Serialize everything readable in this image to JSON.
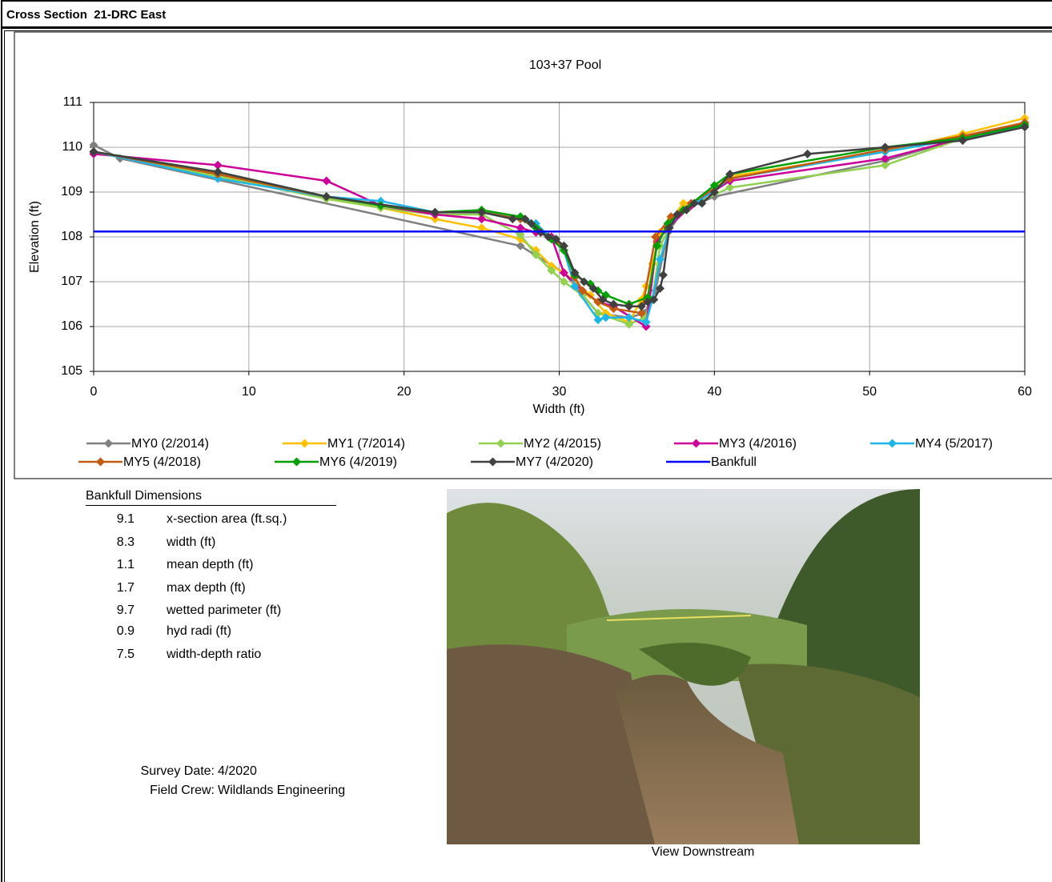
{
  "header": {
    "title": "Cross Section  21-DRC East"
  },
  "chart_data": {
    "type": "line",
    "title": "103+37 Pool",
    "x_label": "Width (ft)",
    "y_label": "Elevation (ft)",
    "xlim": [
      0,
      60
    ],
    "xticks": [
      0,
      10,
      20,
      30,
      40,
      50,
      60
    ],
    "ylim": [
      105,
      111
    ],
    "yticks": [
      105,
      106,
      107,
      108,
      109,
      110,
      111
    ],
    "grid": true,
    "legend": "bottom",
    "series": [
      {
        "name": "MY0 (2/2014)",
        "color": "#808080",
        "marker": "diamond",
        "x": [
          0,
          1.7,
          27.5,
          30.3,
          32.5,
          34.5,
          35.5,
          36.2,
          37,
          38,
          40,
          51,
          56,
          60
        ],
        "values": [
          110.05,
          109.75,
          107.8,
          107.2,
          106.3,
          106.2,
          106.3,
          106.8,
          108.1,
          108.6,
          108.9,
          109.7,
          110.2,
          110.5
        ]
      },
      {
        "name": "MY1 (7/2014)",
        "color": "#ffc000",
        "marker": "diamond",
        "x": [
          0,
          8,
          15,
          18.5,
          22,
          25,
          27.5,
          28.5,
          29.5,
          30.3,
          31,
          32,
          33,
          34.5,
          35.3,
          35.6,
          36,
          36.5,
          37.2,
          38,
          39,
          41,
          51,
          56,
          60
        ],
        "values": [
          109.9,
          109.4,
          108.85,
          108.65,
          108.4,
          108.2,
          107.95,
          107.7,
          107.35,
          107.2,
          107,
          106.7,
          106.3,
          106.1,
          106.6,
          106.9,
          107.4,
          108.1,
          108.4,
          108.75,
          108.8,
          109.35,
          109.9,
          110.3,
          110.65
        ]
      },
      {
        "name": "MY2 (4/2015)",
        "color": "#92d050",
        "marker": "diamond",
        "x": [
          0,
          8,
          15,
          18.5,
          22,
          25,
          27.5,
          28.5,
          29.5,
          30.3,
          31.5,
          32.5,
          34.5,
          35.5,
          36,
          36.5,
          37.5,
          38.5,
          41,
          51,
          56,
          60
        ],
        "values": [
          109.9,
          109.35,
          108.85,
          108.65,
          108.5,
          108.5,
          108.05,
          107.6,
          107.25,
          107,
          106.7,
          106.3,
          106.05,
          106.2,
          106.6,
          107.8,
          108.45,
          108.7,
          109.1,
          109.6,
          110.2,
          110.5
        ]
      },
      {
        "name": "MY3 (4/2016)",
        "color": "#cc0099",
        "marker": "diamond",
        "x": [
          0,
          8,
          15,
          18.5,
          22,
          25,
          27.5,
          28.5,
          29.5,
          30.3,
          31.5,
          32.5,
          33.5,
          35.6,
          36.3,
          37,
          38.5,
          41,
          51,
          56,
          60
        ],
        "values": [
          109.85,
          109.6,
          109.25,
          108.7,
          108.5,
          108.4,
          108.2,
          108.1,
          108,
          107.2,
          106.8,
          106.55,
          106.45,
          106,
          107.9,
          108.2,
          108.7,
          109.25,
          109.75,
          110.2,
          110.55
        ]
      },
      {
        "name": "MY4 (5/2017)",
        "color": "#1fb5e8",
        "marker": "diamond",
        "x": [
          0,
          8,
          15,
          18.5,
          22,
          25,
          27.5,
          28.5,
          30.3,
          31,
          32.5,
          33,
          34.5,
          35.6,
          36,
          36.5,
          37.3,
          38,
          39,
          41,
          51,
          56,
          60
        ],
        "values": [
          109.9,
          109.3,
          108.9,
          108.8,
          108.55,
          108.55,
          108.45,
          108.3,
          107.7,
          106.9,
          106.15,
          106.2,
          106.2,
          106.1,
          106.6,
          107.5,
          108.4,
          108.6,
          108.8,
          109.3,
          109.9,
          110.2,
          110.45
        ]
      },
      {
        "name": "MY5 (4/2018)",
        "color": "#c55a11",
        "marker": "diamond",
        "x": [
          0,
          8,
          15,
          18.5,
          22,
          25,
          27.5,
          28.5,
          29.5,
          30.3,
          31,
          31.5,
          32.5,
          33.5,
          35.3,
          36.2,
          37.2,
          38.5,
          41,
          51,
          56,
          60
        ],
        "values": [
          109.9,
          109.4,
          108.9,
          108.7,
          108.55,
          108.55,
          108.4,
          108.2,
          107.95,
          107.8,
          107.1,
          106.8,
          106.55,
          106.4,
          106.3,
          108,
          108.45,
          108.75,
          109.3,
          109.95,
          110.25,
          110.55
        ]
      },
      {
        "name": "MY6 (4/2019)",
        "color": "#00a000",
        "marker": "diamond",
        "x": [
          0,
          8,
          15,
          18.5,
          22,
          25,
          27.5,
          28.5,
          29.5,
          30.3,
          31,
          32,
          32.5,
          33,
          34.5,
          35.7,
          36.3,
          37,
          38,
          40,
          41,
          51,
          56,
          60
        ],
        "values": [
          109.9,
          109.45,
          108.9,
          108.7,
          108.55,
          108.6,
          108.45,
          108.2,
          107.95,
          107.7,
          107.15,
          106.95,
          106.8,
          106.7,
          106.5,
          106.65,
          107.8,
          108.3,
          108.6,
          109.15,
          109.4,
          110,
          110.2,
          110.5
        ]
      },
      {
        "name": "MY7 (4/2020)",
        "color": "#404040",
        "marker": "diamond",
        "x": [
          0,
          8,
          15,
          22,
          25,
          27,
          27.8,
          28.2,
          28.8,
          29.3,
          29.8,
          30.3,
          31,
          31.6,
          32.2,
          32.8,
          33.5,
          34.5,
          35.3,
          35.7,
          36.1,
          36.5,
          36.7,
          37.1,
          37.6,
          38.2,
          38.7,
          39.2,
          40,
          41,
          46,
          51,
          56,
          60
        ],
        "values": [
          109.9,
          109.45,
          108.9,
          108.55,
          108.55,
          108.4,
          108.4,
          108.3,
          108.1,
          108,
          107.95,
          107.8,
          107.2,
          107,
          106.85,
          106.6,
          106.5,
          106.45,
          106.45,
          106.55,
          106.6,
          106.85,
          107.15,
          108.2,
          108.5,
          108.6,
          108.75,
          108.75,
          109,
          109.4,
          109.85,
          110,
          110.15,
          110.45
        ]
      },
      {
        "name": "Bankfull",
        "color": "#0000ff",
        "marker": "none",
        "x": [
          0,
          60
        ],
        "values": [
          108.12,
          108.12
        ]
      }
    ]
  },
  "dimensions": {
    "title": "Bankfull Dimensions",
    "rows": [
      [
        "9.1",
        "x-section area (ft.sq.)"
      ],
      [
        "8.3",
        "width (ft)"
      ],
      [
        "1.1",
        "mean depth (ft)"
      ],
      [
        "1.7",
        "max depth (ft)"
      ],
      [
        "9.7",
        "wetted parimeter (ft)"
      ],
      [
        "0.9",
        "hyd radi (ft)"
      ],
      [
        "7.5",
        "width-depth ratio"
      ]
    ]
  },
  "survey": {
    "rows": [
      [
        "Survey Date:",
        "4/2020"
      ],
      [
        "Field Crew:",
        "Wildlands Engineering"
      ]
    ]
  },
  "photo": {
    "caption": "View Downstream"
  }
}
